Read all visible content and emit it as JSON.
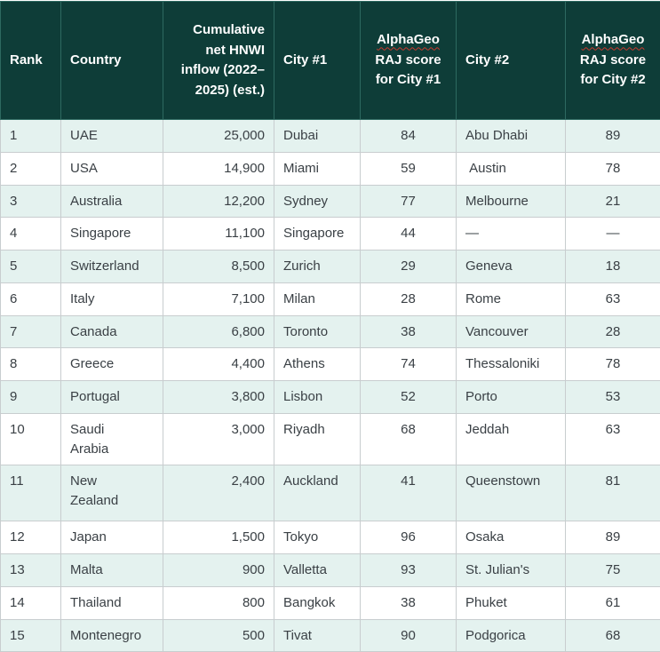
{
  "colors": {
    "header_bg": "#0e3d38",
    "header_border": "#2d6960",
    "header_text": "#ffffff",
    "row_alt_bg": "#e4f2ef",
    "row_bg": "#ffffff",
    "body_border": "#c8cdcf",
    "body_text": "#3a4045",
    "spellcheck_squiggle": "#c9392e"
  },
  "table": {
    "columns": [
      {
        "key": "rank",
        "label": "Rank"
      },
      {
        "key": "country",
        "label": "Country"
      },
      {
        "key": "inflow",
        "label": "Cumulative net HNWI inflow (2022–2025) (est.)"
      },
      {
        "key": "city1",
        "label": "City #1"
      },
      {
        "key": "score1",
        "label_brand": "AlphaGeo",
        "label_rest": " RAJ score for City #1"
      },
      {
        "key": "city2",
        "label": "City #2"
      },
      {
        "key": "score2",
        "label_brand": "AlphaGeo",
        "label_rest": " RAJ score for City #2"
      }
    ],
    "rows": [
      {
        "rank": "1",
        "country": "UAE",
        "inflow": "25,000",
        "city1": "Dubai",
        "score1": "84",
        "city2": "Abu Dhabi",
        "score2": "89"
      },
      {
        "rank": "2",
        "country": "USA",
        "inflow": "14,900",
        "city1": "Miami",
        "score1": "59",
        "city2": " Austin",
        "score2": "78"
      },
      {
        "rank": "3",
        "country": "Australia",
        "inflow": "12,200",
        "city1": "Sydney",
        "score1": "77",
        "city2": "Melbourne",
        "score2": "21"
      },
      {
        "rank": "4",
        "country": "Singapore",
        "inflow": "11,100",
        "city1": "Singapore",
        "score1": "44",
        "city2": "—",
        "score2": "—"
      },
      {
        "rank": "5",
        "country": "Switzerland",
        "inflow": "8,500",
        "city1": "Zurich",
        "score1": "29",
        "city2": "Geneva",
        "score2": "18"
      },
      {
        "rank": "6",
        "country": "Italy",
        "inflow": "7,100",
        "city1": "Milan",
        "score1": "28",
        "city2": "Rome",
        "score2": "63"
      },
      {
        "rank": "7",
        "country": "Canada",
        "inflow": "6,800",
        "city1": "Toronto",
        "score1": "38",
        "city2": "Vancouver",
        "score2": "28"
      },
      {
        "rank": "8",
        "country": "Greece",
        "inflow": "4,400",
        "city1": "Athens",
        "score1": "74",
        "city2": "Thessaloniki",
        "score2": "78"
      },
      {
        "rank": "9",
        "country": "Portugal",
        "inflow": "3,800",
        "city1": "Lisbon",
        "score1": "52",
        "city2": "Porto",
        "score2": "53"
      },
      {
        "rank": "10",
        "country": "Saudi\nArabia",
        "inflow": "3,000",
        "city1": "Riyadh",
        "score1": "68",
        "city2": "Jeddah",
        "score2": "63"
      },
      {
        "rank": "11",
        "country": "New\nZealand",
        "inflow": "2,400",
        "city1": "Auckland",
        "score1": "41",
        "city2": "Queenstown",
        "score2": "81"
      },
      {
        "rank": "12",
        "country": "Japan",
        "inflow": "1,500",
        "city1": "Tokyo",
        "score1": "96",
        "city2": "Osaka",
        "score2": "89"
      },
      {
        "rank": "13",
        "country": "Malta",
        "inflow": "900",
        "city1": "Valletta",
        "score1": "93",
        "city2": "St. Julian's",
        "score2": "75"
      },
      {
        "rank": "14",
        "country": "Thailand",
        "inflow": "800",
        "city1": "Bangkok",
        "score1": "38",
        "city2": "Phuket",
        "score2": "61"
      },
      {
        "rank": "15",
        "country": "Montenegro",
        "inflow": "500",
        "city1": "Tivat",
        "score1": "90",
        "city2": "Podgorica",
        "score2": "68"
      }
    ]
  }
}
